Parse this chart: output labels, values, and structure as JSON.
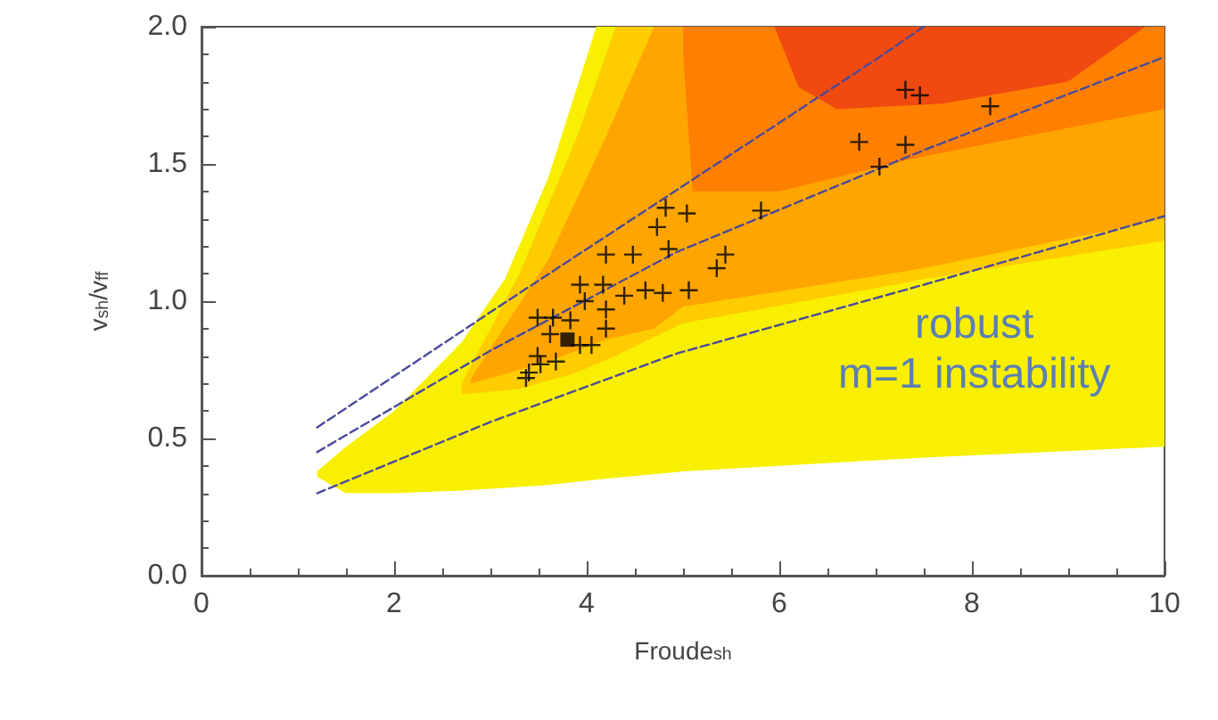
{
  "chart_data": {
    "type": "scatter",
    "xlabel": "Froude$_{sh}$",
    "ylabel": "v$_{sh}$/v$_{ff}$",
    "xlim": [
      0,
      10
    ],
    "xticks": [
      0,
      2,
      4,
      6,
      8,
      10
    ],
    "ylim": [
      0,
      2
    ],
    "yticks": [
      {
        "value": 0,
        "label": "0.0"
      },
      0.5,
      {
        "value": 1,
        "label": "1.0"
      },
      1.5,
      {
        "value": 2,
        "label": "2.0"
      }
    ],
    "grid": false,
    "annotations": [
      "robust\nm=1 instability"
    ],
    "series": [
      {
        "type": "area",
        "color": "#f8f000",
        "x": [
          1.2,
          1.5,
          2,
          2.7,
          3.15,
          3.6,
          4.1,
          5,
          7.5,
          10
        ],
        "values": [
          null,
          null,
          null,
          null,
          null,
          null,
          null,
          null,
          null,
          null
        ],
        "upper": [
          0.38,
          0.47,
          0.6,
          0.85,
          1.08,
          1.45,
          2.0,
          2.0,
          2.0,
          2.0
        ],
        "lower": [
          0.36,
          0.3,
          0.3,
          0.31,
          0.32,
          0.33,
          0.35,
          0.38,
          0.43,
          0.47
        ]
      },
      {
        "type": "area",
        "color": "#ffcc00",
        "x": [
          2.7,
          3.3,
          3.9,
          4.3,
          5,
          7.5,
          10
        ],
        "values": [
          null,
          null,
          null,
          null,
          null,
          null,
          null
        ],
        "upper": [
          0.7,
          1.1,
          1.6,
          2.0,
          2.0,
          2.0,
          2.0
        ],
        "lower": [
          0.66,
          0.68,
          0.74,
          0.8,
          0.92,
          1.08,
          1.22
        ]
      },
      {
        "type": "area",
        "color": "#ffa500",
        "x": [
          2.8,
          3.6,
          4.2,
          4.7,
          5,
          7.5,
          10
        ],
        "values": [
          null,
          null,
          null,
          null,
          null,
          null,
          null
        ],
        "upper": [
          0.72,
          1.15,
          1.6,
          2.0,
          2.0,
          2.0,
          2.0
        ],
        "lower": [
          0.7,
          0.78,
          0.86,
          0.9,
          0.98,
          1.12,
          1.3
        ]
      },
      {
        "type": "area",
        "color": "#ff8000",
        "x": [
          5.0,
          5.1,
          6,
          7.4,
          10
        ],
        "values": [
          null,
          null,
          null,
          null,
          null
        ],
        "upper": [
          2.0,
          2.0,
          2.0,
          2.0,
          2.0
        ],
        "lower": [
          1.9,
          1.4,
          1.4,
          1.52,
          1.7
        ]
      },
      {
        "type": "area",
        "color": "#f04a10",
        "x": [
          5.95,
          6.2,
          6.6,
          7.7,
          9.0,
          9.8
        ],
        "values": [
          null,
          null,
          null,
          null,
          null,
          null
        ],
        "upper": [
          2.0,
          2.0,
          2.0,
          2.0,
          2.0,
          2.0
        ],
        "lower": [
          2.0,
          1.78,
          1.7,
          1.72,
          1.8,
          2.0
        ]
      },
      {
        "type": "line",
        "color": "#4a4a9a",
        "line_style": "dashed",
        "marker": "none",
        "x": [
          1.2,
          3,
          5,
          7,
          7.5
        ],
        "values": [
          0.54,
          0.96,
          1.42,
          1.88,
          2.0
        ]
      },
      {
        "type": "line",
        "color": "#4a4a9a",
        "line_style": "dashed",
        "marker": "none",
        "x": [
          1.2,
          3,
          4.94,
          7.5,
          10
        ],
        "values": [
          0.45,
          0.82,
          1.18,
          1.55,
          1.89
        ]
      },
      {
        "type": "line",
        "color": "#4a4a9a",
        "line_style": "dashed",
        "marker": "none",
        "x": [
          1.2,
          3,
          4.94,
          7.5,
          10
        ],
        "values": [
          0.3,
          0.56,
          0.81,
          1.06,
          1.31
        ]
      },
      {
        "color": "#000000",
        "marker": "cross",
        "x": [
          3.37,
          3.4,
          3.49,
          3.52,
          3.68,
          3.49,
          3.65,
          3.62,
          3.83,
          3.93,
          4.05,
          3.93,
          3.98,
          4.2,
          4.2,
          4.17,
          4.2,
          4.48,
          4.39,
          4.61,
          4.79,
          4.85,
          4.73,
          4.82,
          5.04,
          5.06,
          5.35,
          5.44,
          5.81,
          6.83,
          7.04,
          7.31,
          7.31,
          7.46,
          8.19
        ],
        "values": [
          0.72,
          0.74,
          0.8,
          0.77,
          0.78,
          0.94,
          0.94,
          0.88,
          0.93,
          0.84,
          0.84,
          1.06,
          1.0,
          0.97,
          0.9,
          1.06,
          1.17,
          1.17,
          1.02,
          1.04,
          1.03,
          1.19,
          1.27,
          1.34,
          1.32,
          1.04,
          1.12,
          1.17,
          1.33,
          1.58,
          1.49,
          1.57,
          1.77,
          1.75,
          1.71
        ]
      },
      {
        "color": "#000000",
        "marker": "square",
        "x": [
          3.8
        ],
        "values": [
          0.86
        ]
      }
    ]
  }
}
